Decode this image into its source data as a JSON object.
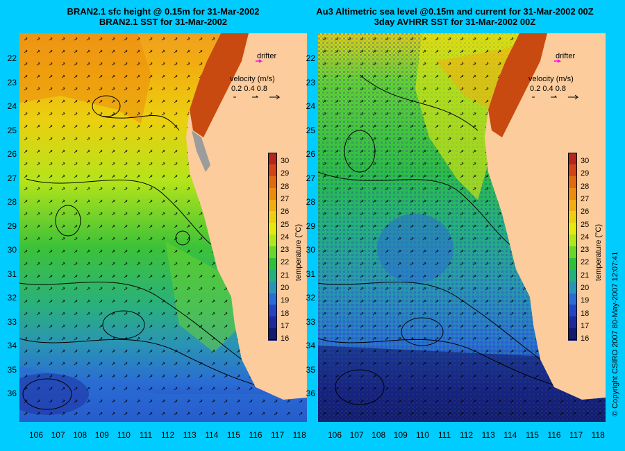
{
  "titles": {
    "left_line1": "BRAN2.1 sfc height @ 0.15m for 31-Mar-2002",
    "left_line2": "BRAN2.1 SST for 31-Mar-2002",
    "right_line1": "Au3 Altimetric sea level  @0.15m and current for 31-Mar-2002 00Z",
    "right_line2": "3day AVHRR SST for 31-Mar-2002 00Z"
  },
  "drifter_label": "drifter",
  "velocity": {
    "title": "velocity (m/s)",
    "scale": [
      "0.2",
      "0.4",
      "0.8"
    ]
  },
  "colorbar": {
    "label": "temperature (°C)",
    "ticks": [
      "30",
      "29",
      "28",
      "27",
      "26",
      "25",
      "24",
      "23",
      "22",
      "21",
      "20",
      "19",
      "18",
      "17",
      "16"
    ],
    "colors": [
      "#b3261e",
      "#d04416",
      "#e06a10",
      "#ec8c0c",
      "#f2ad10",
      "#eccf10",
      "#e4e80c",
      "#b4e41a",
      "#6cd42a",
      "#2ec03a",
      "#24b07c",
      "#2a94b4",
      "#2a6cd4",
      "#2444c0",
      "#1e2a9c",
      "#141a6c"
    ]
  },
  "y_axis_labels": [
    "22",
    "23",
    "24",
    "25",
    "26",
    "27",
    "28",
    "29",
    "30",
    "31",
    "32",
    "33",
    "34",
    "35",
    "36"
  ],
  "x_axis_labels": [
    "106",
    "107",
    "108",
    "109",
    "110",
    "111",
    "112",
    "113",
    "114",
    "115",
    "116",
    "117",
    "118"
  ],
  "copyright": "© Copyright CSIRO 2007    80-May-2007 12:07:41",
  "colors": {
    "background": "#00ccff",
    "land": "#fccc9c",
    "drifter": "#ff00ff"
  }
}
